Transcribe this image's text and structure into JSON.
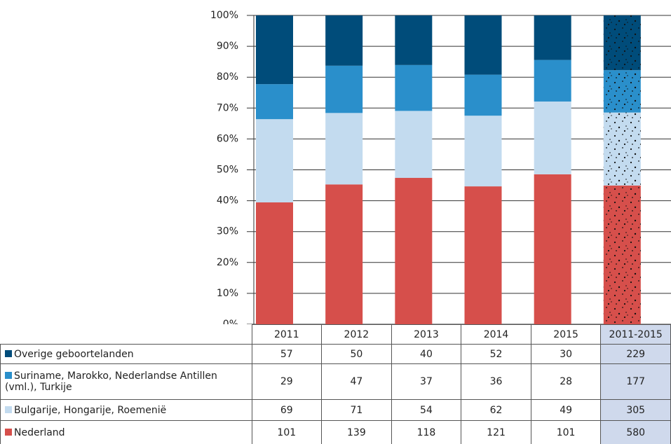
{
  "chart_data": {
    "type": "bar",
    "stacked": "percent",
    "categories": [
      "2011",
      "2012",
      "2013",
      "2014",
      "2015",
      "2011-2015"
    ],
    "series": [
      {
        "name": "Overige geboortelanden",
        "color": "#004c7a",
        "values": [
          57,
          50,
          40,
          52,
          30,
          229
        ]
      },
      {
        "name": "Suriname, Marokko, Nederlandse Antillen (vml.), Turkije",
        "color": "#2a8fcb",
        "values": [
          29,
          47,
          37,
          36,
          28,
          177
        ]
      },
      {
        "name": "Bulgarije, Hongarije, Roemenië",
        "color": "#c3dbef",
        "values": [
          69,
          71,
          54,
          62,
          49,
          305
        ]
      },
      {
        "name": "Nederland",
        "color": "#d64f4b",
        "values": [
          101,
          139,
          118,
          121,
          101,
          580
        ]
      }
    ],
    "ylim": [
      0,
      100
    ],
    "yticks": [
      {
        "value": 0,
        "label": "0%"
      },
      {
        "value": 10,
        "label": "10%"
      },
      {
        "value": 20,
        "label": "20%"
      },
      {
        "value": 30,
        "label": "30%"
      },
      {
        "value": 40,
        "label": "40%"
      },
      {
        "value": 50,
        "label": "50%"
      },
      {
        "value": 60,
        "label": "60%"
      },
      {
        "value": 70,
        "label": "70%"
      },
      {
        "value": 80,
        "label": "80%"
      },
      {
        "value": 90,
        "label": "90%"
      },
      {
        "value": 100,
        "label": "100%"
      }
    ],
    "grid": true
  }
}
